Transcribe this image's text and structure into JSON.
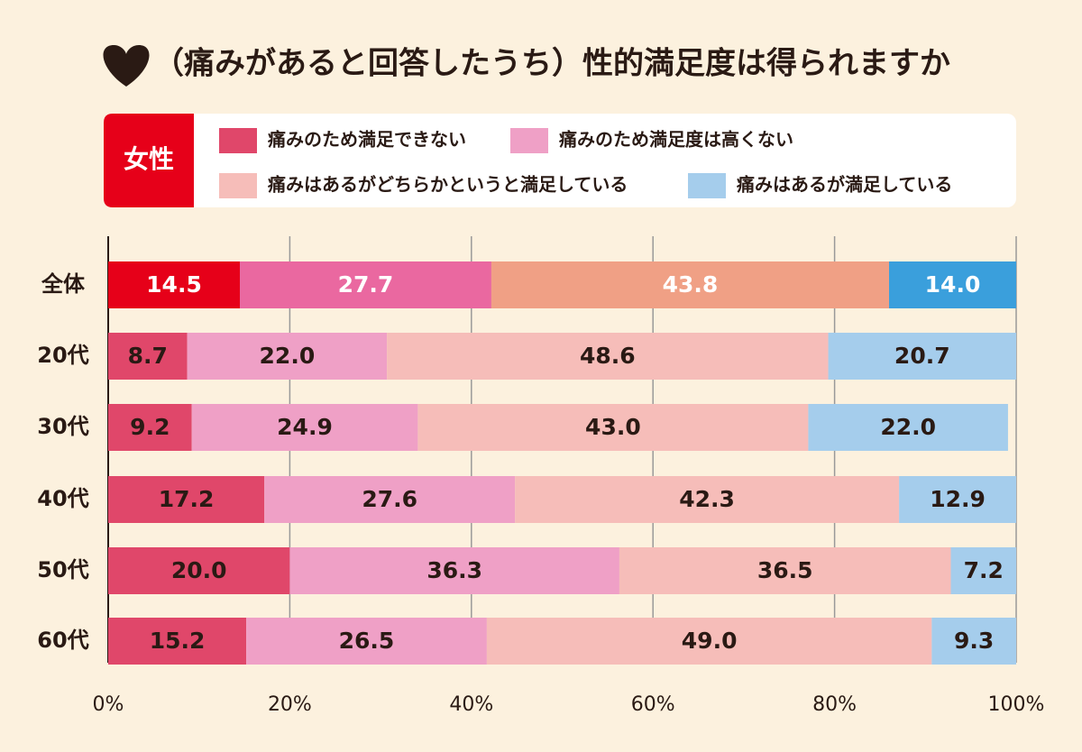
{
  "chart_data": {
    "type": "stacked-bar-horizontal",
    "title": "（痛みがあると回答したうち）性的満足度は得られますか",
    "legend_title": "女性",
    "categories": [
      "全体",
      "20代",
      "30代",
      "40代",
      "50代",
      "60代"
    ],
    "series": [
      {
        "name": "痛みのため満足できない",
        "color": "#e0476a",
        "colors": [
          "#e60019",
          "#e0476a",
          "#e0476a",
          "#e0476a",
          "#e0476a",
          "#e0476a"
        ],
        "values": [
          14.5,
          8.7,
          9.2,
          17.2,
          20.0,
          15.2
        ],
        "value_labels": [
          "14.5",
          "8.7",
          "9.2",
          "17.2",
          "20.0",
          "15.2"
        ]
      },
      {
        "name": "痛みのため満足度は高くない",
        "color": "#efa0c6",
        "colors": [
          "#ea68a0",
          "#efa0c6",
          "#efa0c6",
          "#efa0c6",
          "#efa0c6",
          "#efa0c6"
        ],
        "values": [
          27.7,
          22.0,
          24.9,
          27.6,
          36.3,
          26.5
        ],
        "value_labels": [
          "27.7",
          "22.0",
          "24.9",
          "27.6",
          "36.3",
          "26.5"
        ]
      },
      {
        "name": "痛みはあるがどちらかというと満足している",
        "color": "#f6bdb9",
        "colors": [
          "#f0a085",
          "#f6bdb9",
          "#f6bdb9",
          "#f6bdb9",
          "#f6bdb9",
          "#f6bdb9"
        ],
        "values": [
          43.8,
          48.6,
          43.0,
          42.3,
          36.5,
          49.0
        ],
        "value_labels": [
          "43.8",
          "48.6",
          "43.0",
          "42.3",
          "36.5",
          "49.0"
        ]
      },
      {
        "name": "痛みはあるが満足している",
        "color": "#a5cdec",
        "colors": [
          "#3a9fdc",
          "#a5cdec",
          "#a5cdec",
          "#a5cdec",
          "#a5cdec",
          "#a5cdec"
        ],
        "values": [
          14.0,
          20.7,
          22.0,
          12.9,
          7.2,
          9.3
        ],
        "value_labels": [
          "14.0",
          "20.7",
          "22.0",
          "12.9",
          "7.2",
          "9.3"
        ]
      }
    ],
    "xlim": [
      0,
      100
    ],
    "xticks": [
      {
        "value": 0,
        "label": "0%"
      },
      {
        "value": 20,
        "label": "20%"
      },
      {
        "value": 40,
        "label": "40%"
      },
      {
        "value": 60,
        "label": "60%"
      },
      {
        "value": 80,
        "label": "80%"
      },
      {
        "value": 100,
        "label": "100%"
      }
    ],
    "grid": true
  }
}
